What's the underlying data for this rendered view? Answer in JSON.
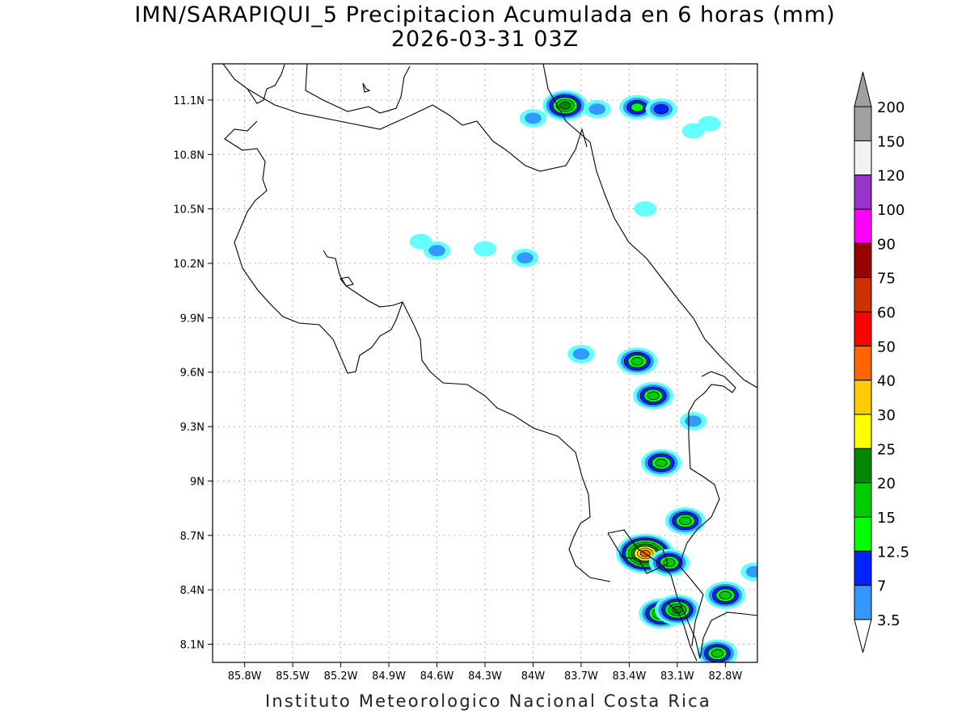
{
  "title": "IMN/SARAPIQUI_5 Precipitacion Acumulada en 6 horas (mm)",
  "subtitle": "2026-03-31 03Z",
  "footer": "Instituto Meteorologico Nacional Costa Rica",
  "map": {
    "lon_range": [
      -86.0,
      -82.6
    ],
    "lat_range": [
      8.0,
      11.3
    ],
    "grid": "dotted",
    "lon_ticks": [
      {
        "value": -85.8,
        "label": "85.8W"
      },
      {
        "value": -85.5,
        "label": "85.5W"
      },
      {
        "value": -85.2,
        "label": "85.2W"
      },
      {
        "value": -84.9,
        "label": "84.9W"
      },
      {
        "value": -84.6,
        "label": "84.6W"
      },
      {
        "value": -84.3,
        "label": "84.3W"
      },
      {
        "value": -84.0,
        "label": "84W"
      },
      {
        "value": -83.7,
        "label": "83.7W"
      },
      {
        "value": -83.4,
        "label": "83.4W"
      },
      {
        "value": -83.1,
        "label": "83.1W"
      },
      {
        "value": -82.8,
        "label": "82.8W"
      }
    ],
    "lat_ticks": [
      {
        "value": 11.1,
        "label": "11.1N"
      },
      {
        "value": 10.8,
        "label": "10.8N"
      },
      {
        "value": 10.5,
        "label": "10.5N"
      },
      {
        "value": 10.2,
        "label": "10.2N"
      },
      {
        "value": 9.9,
        "label": "9.9N"
      },
      {
        "value": 9.6,
        "label": "9.6N"
      },
      {
        "value": 9.3,
        "label": "9.3N"
      },
      {
        "value": 9.0,
        "label": "9N"
      },
      {
        "value": 8.7,
        "label": "8.7N"
      },
      {
        "value": 8.4,
        "label": "8.4N"
      },
      {
        "value": 8.1,
        "label": "8.1N"
      }
    ]
  },
  "colorbar": {
    "labels": [
      "3.5",
      "7",
      "12.5",
      "15",
      "20",
      "25",
      "30",
      "40",
      "50",
      "60",
      "75",
      "90",
      "100",
      "120",
      "150",
      "200"
    ],
    "colors": [
      "#66ffff",
      "#3399ff",
      "#0022ff",
      "#00ff00",
      "#00cc00",
      "#008800",
      "#ffff00",
      "#ffcc00",
      "#ff6600",
      "#ff0000",
      "#cc3300",
      "#990000",
      "#ff00ff",
      "#9933cc",
      "#f2f2f2",
      "#a0a0a0"
    ],
    "under_color": "#ffffff",
    "over_color": "#a0a0a0"
  },
  "precip_cells": [
    {
      "lon": -84.0,
      "lat": 11.0,
      "max": 7
    },
    {
      "lon": -83.8,
      "lat": 11.07,
      "max": 25
    },
    {
      "lon": -83.6,
      "lat": 11.05,
      "max": 7
    },
    {
      "lon": -83.35,
      "lat": 11.06,
      "max": 15
    },
    {
      "lon": -83.2,
      "lat": 11.05,
      "max": 12.5
    },
    {
      "lon": -83.0,
      "lat": 10.93,
      "max": 3.5
    },
    {
      "lon": -82.9,
      "lat": 10.97,
      "max": 3.5
    },
    {
      "lon": -83.3,
      "lat": 10.5,
      "max": 3.5
    },
    {
      "lon": -84.6,
      "lat": 10.27,
      "max": 7
    },
    {
      "lon": -84.7,
      "lat": 10.32,
      "max": 3.5
    },
    {
      "lon": -84.3,
      "lat": 10.28,
      "max": 3.5
    },
    {
      "lon": -84.05,
      "lat": 10.23,
      "max": 7
    },
    {
      "lon": -83.7,
      "lat": 9.7,
      "max": 7
    },
    {
      "lon": -83.35,
      "lat": 9.66,
      "max": 20
    },
    {
      "lon": -83.25,
      "lat": 9.47,
      "max": 20
    },
    {
      "lon": -83.0,
      "lat": 9.33,
      "max": 7
    },
    {
      "lon": -83.2,
      "lat": 9.1,
      "max": 20
    },
    {
      "lon": -83.05,
      "lat": 8.78,
      "max": 20
    },
    {
      "lon": -83.3,
      "lat": 8.6,
      "max": 50
    },
    {
      "lon": -83.15,
      "lat": 8.55,
      "max": 20
    },
    {
      "lon": -82.8,
      "lat": 8.37,
      "max": 20
    },
    {
      "lon": -83.2,
      "lat": 8.27,
      "max": 25
    },
    {
      "lon": -83.1,
      "lat": 8.29,
      "max": 25
    },
    {
      "lon": -82.85,
      "lat": 8.05,
      "max": 20
    },
    {
      "lon": -82.62,
      "lat": 8.5,
      "max": 7
    }
  ]
}
